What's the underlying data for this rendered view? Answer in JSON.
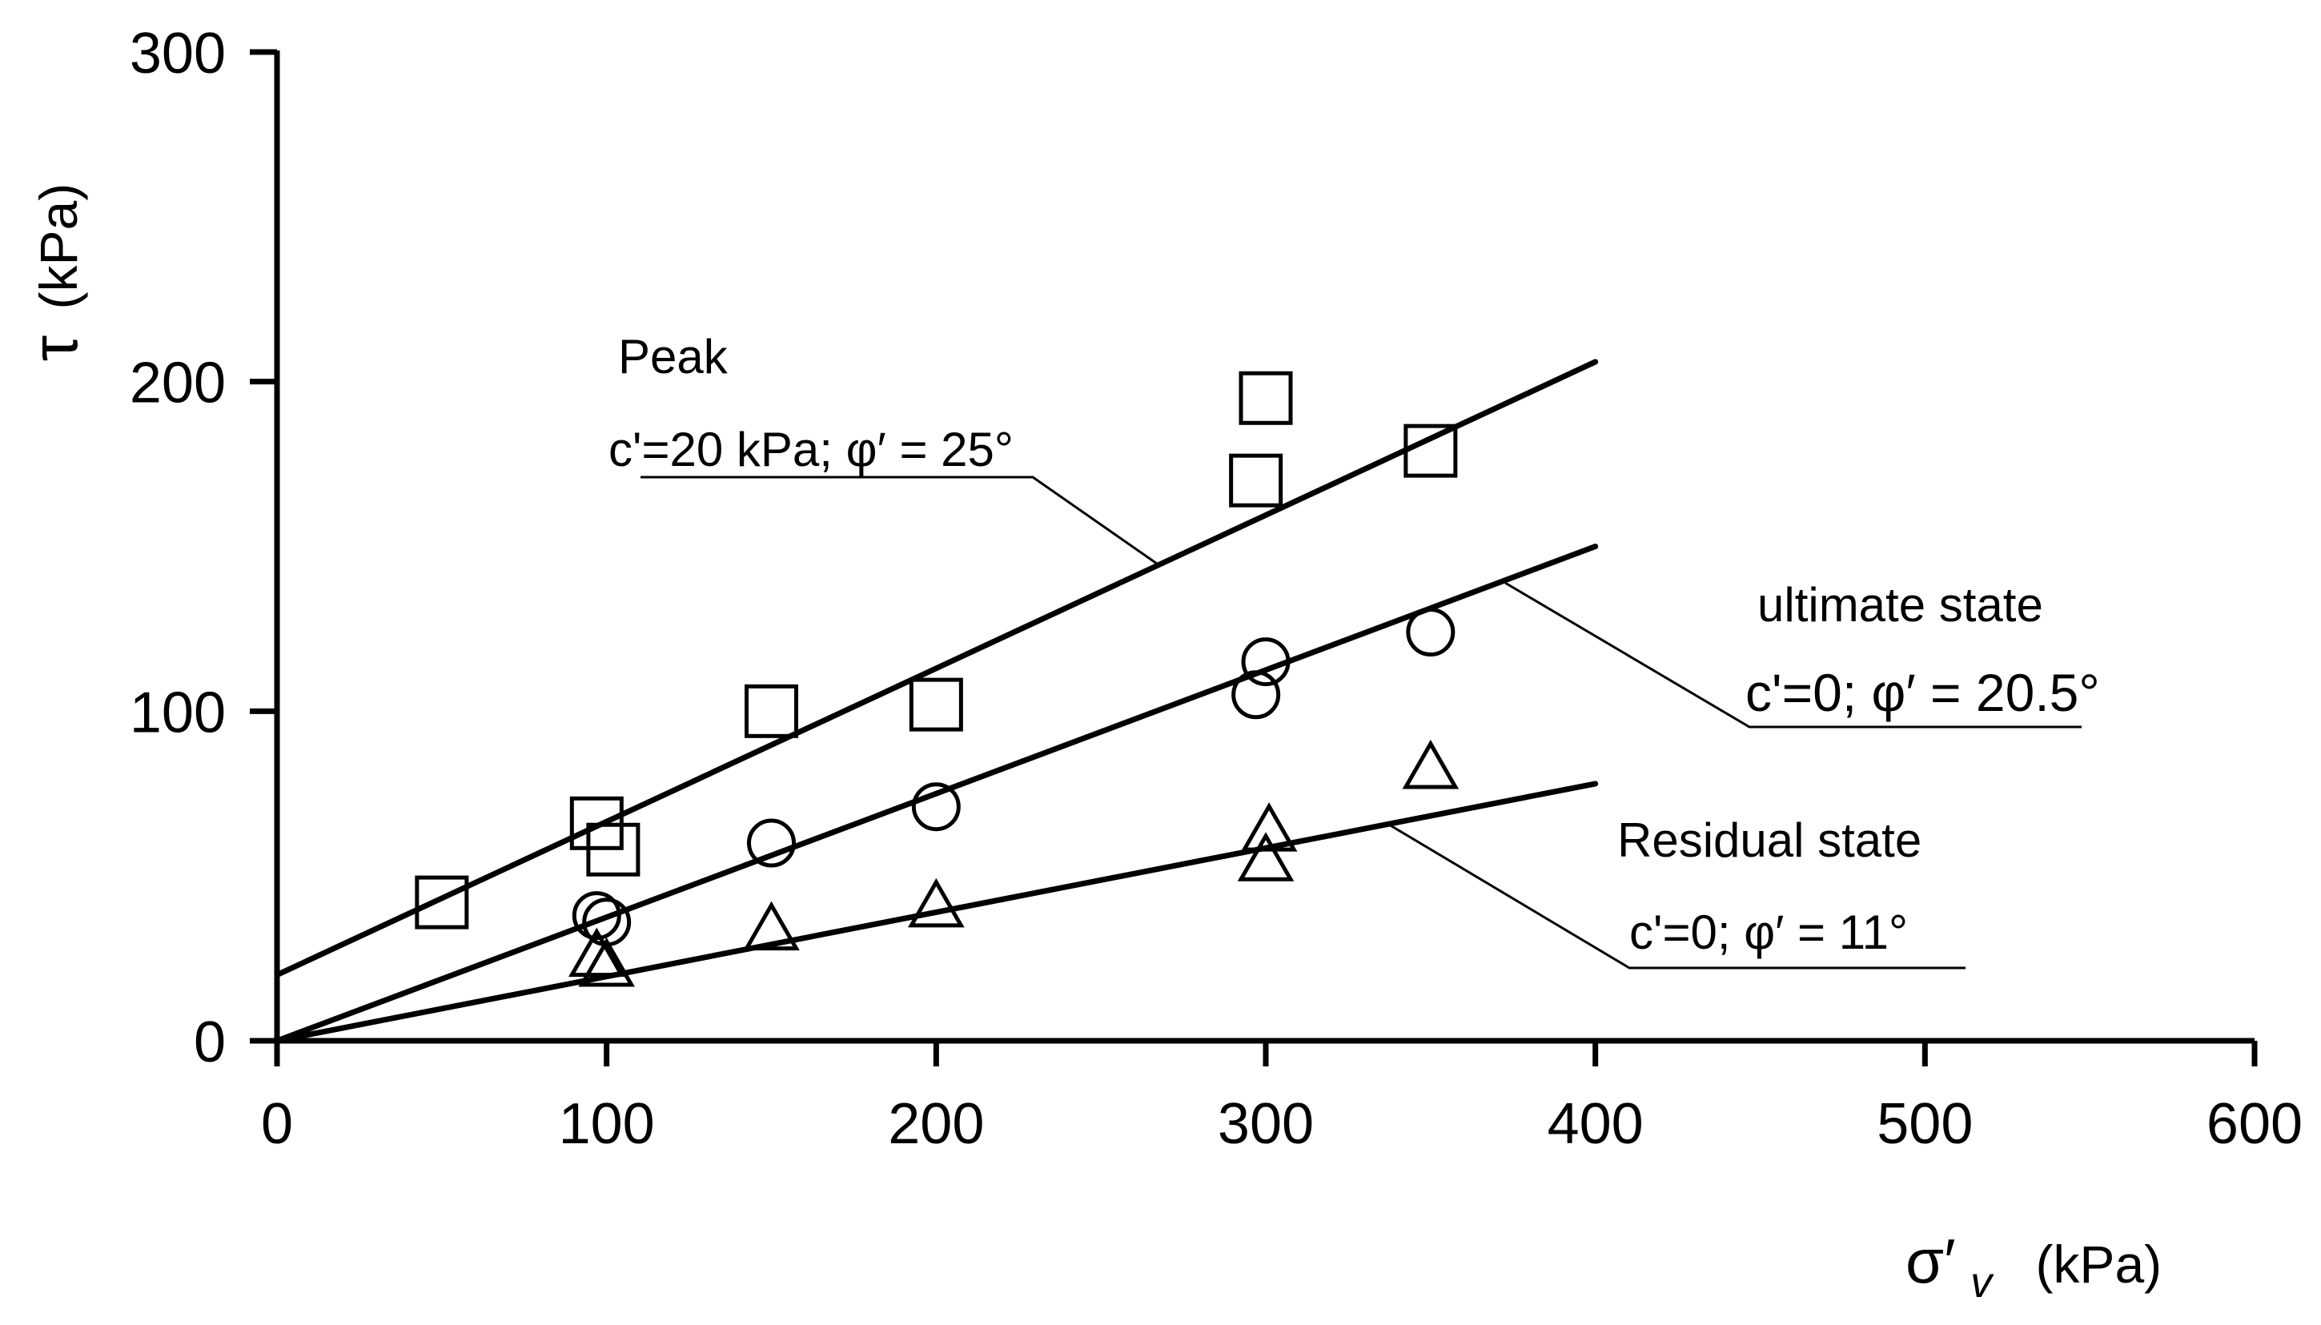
{
  "chart_data": {
    "type": "scatter",
    "title": "",
    "xlabel": "σ′v (kPa)",
    "xlabel_parts": {
      "symbol": "σ′",
      "subscript": "v",
      "unit": "(kPa)"
    },
    "ylabel": "τ (kPa)",
    "ylabel_parts": {
      "symbol": "τ",
      "unit": "(kPa)"
    },
    "xlim": [
      0,
      600
    ],
    "ylim": [
      0,
      300
    ],
    "xticks": [
      0,
      100,
      200,
      300,
      400,
      500,
      600
    ],
    "yticks": [
      0,
      100,
      200,
      300
    ],
    "x_tick_labels": [
      "0",
      "100",
      "200",
      "300",
      "400",
      "500",
      "600"
    ],
    "y_tick_labels": [
      "0",
      "100",
      "200",
      "300"
    ],
    "grid": false,
    "series": [
      {
        "name": "Peak",
        "marker": "square",
        "points": [
          [
            50,
            42
          ],
          [
            97,
            66
          ],
          [
            102,
            58
          ],
          [
            150,
            100
          ],
          [
            200,
            102
          ],
          [
            297,
            170
          ],
          [
            300,
            195
          ],
          [
            350,
            179
          ]
        ],
        "fit": {
          "c_kPa": 20,
          "phi_deg": 25,
          "x_range": [
            0,
            400
          ],
          "y_range": [
            20,
            206
          ]
        },
        "annotation_title": "Peak",
        "annotation_params": "c'=20 kPa; φ′ = 25°"
      },
      {
        "name": "ultimate state",
        "marker": "circle",
        "points": [
          [
            97,
            38
          ],
          [
            100,
            36
          ],
          [
            150,
            60
          ],
          [
            200,
            71
          ],
          [
            297,
            105
          ],
          [
            300,
            115
          ],
          [
            350,
            124
          ]
        ],
        "fit": {
          "c_kPa": 0,
          "phi_deg": 20.5,
          "x_range": [
            0,
            400
          ],
          "y_range": [
            0,
            150
          ]
        },
        "annotation_title": "ultimate state",
        "annotation_params": "c'=0; φ′ = 20.5°"
      },
      {
        "name": "Residual state",
        "marker": "triangle",
        "points": [
          [
            97,
            25
          ],
          [
            100,
            22
          ],
          [
            150,
            33
          ],
          [
            200,
            40
          ],
          [
            300,
            54
          ],
          [
            301,
            63
          ],
          [
            350,
            82
          ]
        ],
        "fit": {
          "c_kPa": 0,
          "phi_deg": 11,
          "x_range": [
            0,
            400
          ],
          "y_range": [
            0,
            78
          ]
        },
        "annotation_title": "Residual state",
        "annotation_params": "c'=0; φ′ = 11°"
      }
    ]
  },
  "colors": {
    "ink": "#000000",
    "background": "#ffffff"
  }
}
